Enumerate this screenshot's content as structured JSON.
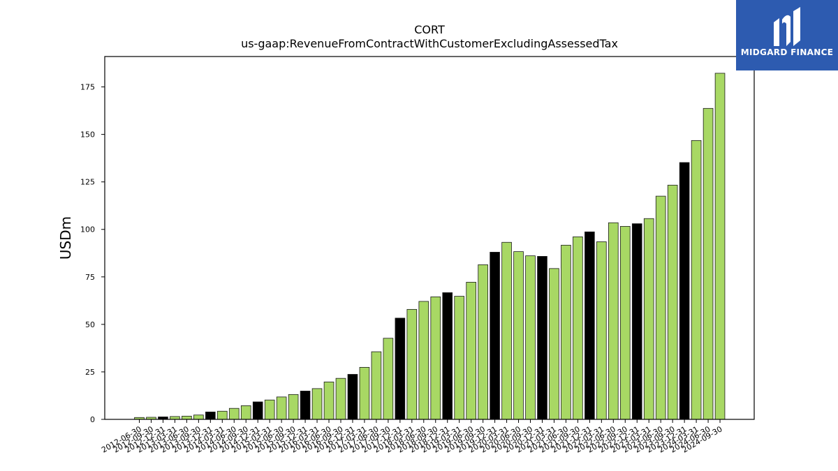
{
  "chart_data": {
    "type": "bar",
    "title": "CORT",
    "subtitle": "us-gaap:RevenueFromContractWithCustomerExcludingAssessedTax",
    "xlabel": "",
    "ylabel": "USDm",
    "ylim": [
      0,
      191
    ],
    "yticks": [
      0,
      25,
      50,
      75,
      100,
      125,
      150,
      175
    ],
    "grid": false,
    "colors": {
      "quarter": "#a8d864",
      "year_end": "#000000",
      "edge": "#1a1a1a"
    },
    "categories": [
      "2012-06-30",
      "2012-09-30",
      "2012-12-31",
      "2013-03-31",
      "2013-06-30",
      "2013-09-30",
      "2013-12-31",
      "2014-03-31",
      "2014-06-30",
      "2014-09-30",
      "2014-12-31",
      "2015-03-31",
      "2015-06-30",
      "2015-09-30",
      "2015-12-31",
      "2016-03-31",
      "2016-06-30",
      "2016-09-30",
      "2016-12-31",
      "2017-03-31",
      "2017-06-30",
      "2017-09-30",
      "2017-12-31",
      "2018-03-31",
      "2018-06-30",
      "2018-09-30",
      "2018-12-31",
      "2019-03-31",
      "2019-06-30",
      "2019-09-30",
      "2019-12-31",
      "2020-03-31",
      "2020-06-30",
      "2020-09-30",
      "2020-12-31",
      "2021-03-31",
      "2021-06-30",
      "2021-09-30",
      "2021-12-31",
      "2022-03-31",
      "2022-06-30",
      "2022-09-30",
      "2022-12-31",
      "2023-03-31",
      "2023-06-30",
      "2023-09-30",
      "2023-12-31",
      "2024-03-31",
      "2024-06-30",
      "2024-09-30"
    ],
    "values": [
      1.0,
      1.1,
      1.3,
      1.5,
      1.7,
      2.3,
      3.9,
      4.3,
      5.8,
      7.2,
      9.2,
      10.2,
      11.8,
      13.1,
      14.9,
      16.2,
      19.7,
      21.6,
      23.7,
      27.4,
      35.6,
      42.7,
      53.3,
      57.9,
      62.1,
      64.5,
      66.7,
      64.8,
      72.2,
      81.4,
      88.0,
      93.2,
      88.3,
      86.1,
      85.8,
      79.4,
      91.7,
      96.1,
      98.7,
      93.5,
      103.5,
      101.6,
      103.0,
      105.7,
      117.5,
      123.3,
      135.2,
      146.8,
      163.7,
      182.2
    ],
    "year_end_flags": [
      0,
      0,
      1,
      0,
      0,
      0,
      1,
      0,
      0,
      0,
      1,
      0,
      0,
      0,
      1,
      0,
      0,
      0,
      1,
      0,
      0,
      0,
      1,
      0,
      0,
      0,
      1,
      0,
      0,
      0,
      1,
      0,
      0,
      0,
      1,
      0,
      0,
      0,
      1,
      0,
      0,
      0,
      1,
      0,
      0,
      0,
      1,
      0,
      0,
      0
    ]
  },
  "logo": {
    "text": "MIDGARD FINANCE"
  }
}
